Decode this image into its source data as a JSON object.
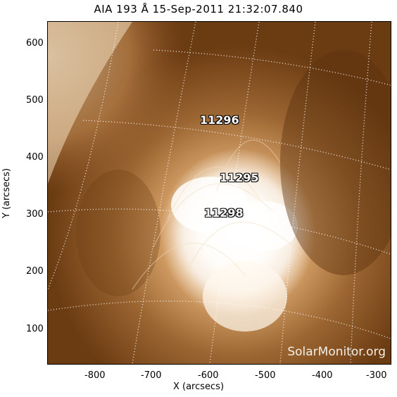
{
  "title": "AIA 193 Å 15-Sep-2011 21:32:07.840",
  "xlabel": "X (arcsecs)",
  "ylabel": "Y (arcsecs)",
  "x_ticks": [
    "-800",
    "-700",
    "-600",
    "-500",
    "-400",
    "-300"
  ],
  "y_ticks": [
    "600",
    "500",
    "400",
    "300",
    "200",
    "100"
  ],
  "active_regions": [
    "11296",
    "11295",
    "11298"
  ],
  "watermark": "SolarMonitor.org",
  "colors": {
    "corona_dark": "#6b3b12",
    "corona_mid": "#a8703a",
    "corona_bright": "#ffffff"
  }
}
